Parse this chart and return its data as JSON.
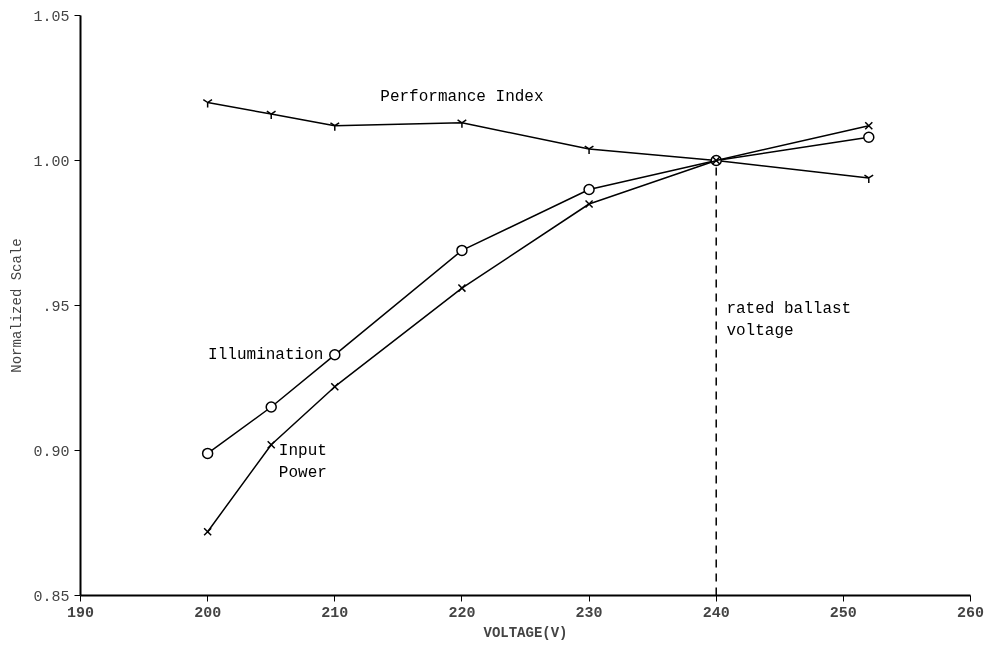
{
  "chart_data": {
    "type": "line",
    "xlabel": "VOLTAGE(V)",
    "ylabel": "Normalized Scale",
    "x": [
      200,
      205,
      210,
      220,
      230,
      240,
      252
    ],
    "series": [
      {
        "name": "Performance Index",
        "color": "#000000",
        "marker": "cross",
        "values": [
          1.02,
          1.016,
          1.012,
          1.013,
          1.004,
          1.0,
          0.994
        ]
      },
      {
        "name": "Illumination",
        "color": "#000000",
        "marker": "circle",
        "values": [
          0.899,
          0.915,
          0.933,
          0.969,
          0.99,
          1.0,
          1.008
        ]
      },
      {
        "name": "Input Power",
        "color": "#000000",
        "marker": "x",
        "values": [
          0.872,
          0.902,
          0.922,
          0.956,
          0.985,
          1.0,
          1.012
        ]
      }
    ],
    "xlim": [
      190,
      260
    ],
    "xticks": [
      190,
      200,
      210,
      220,
      230,
      240,
      250,
      260
    ],
    "ylim": [
      0.85,
      1.05
    ],
    "yticks": [
      {
        "value": 0.85,
        "label": "0.85"
      },
      {
        "value": 0.9,
        "label": "0.90"
      },
      {
        "value": 0.95,
        "label": ".95"
      },
      {
        "value": 1.0,
        "label": "1.00"
      },
      {
        "value": 1.05,
        "label": "1.05"
      }
    ],
    "ref_lines": [
      {
        "axis": "x",
        "value": 240,
        "label": "rated ballast voltage",
        "line_style": "dashed",
        "color": "#000000"
      }
    ],
    "grid": false,
    "line_style": "solid"
  }
}
